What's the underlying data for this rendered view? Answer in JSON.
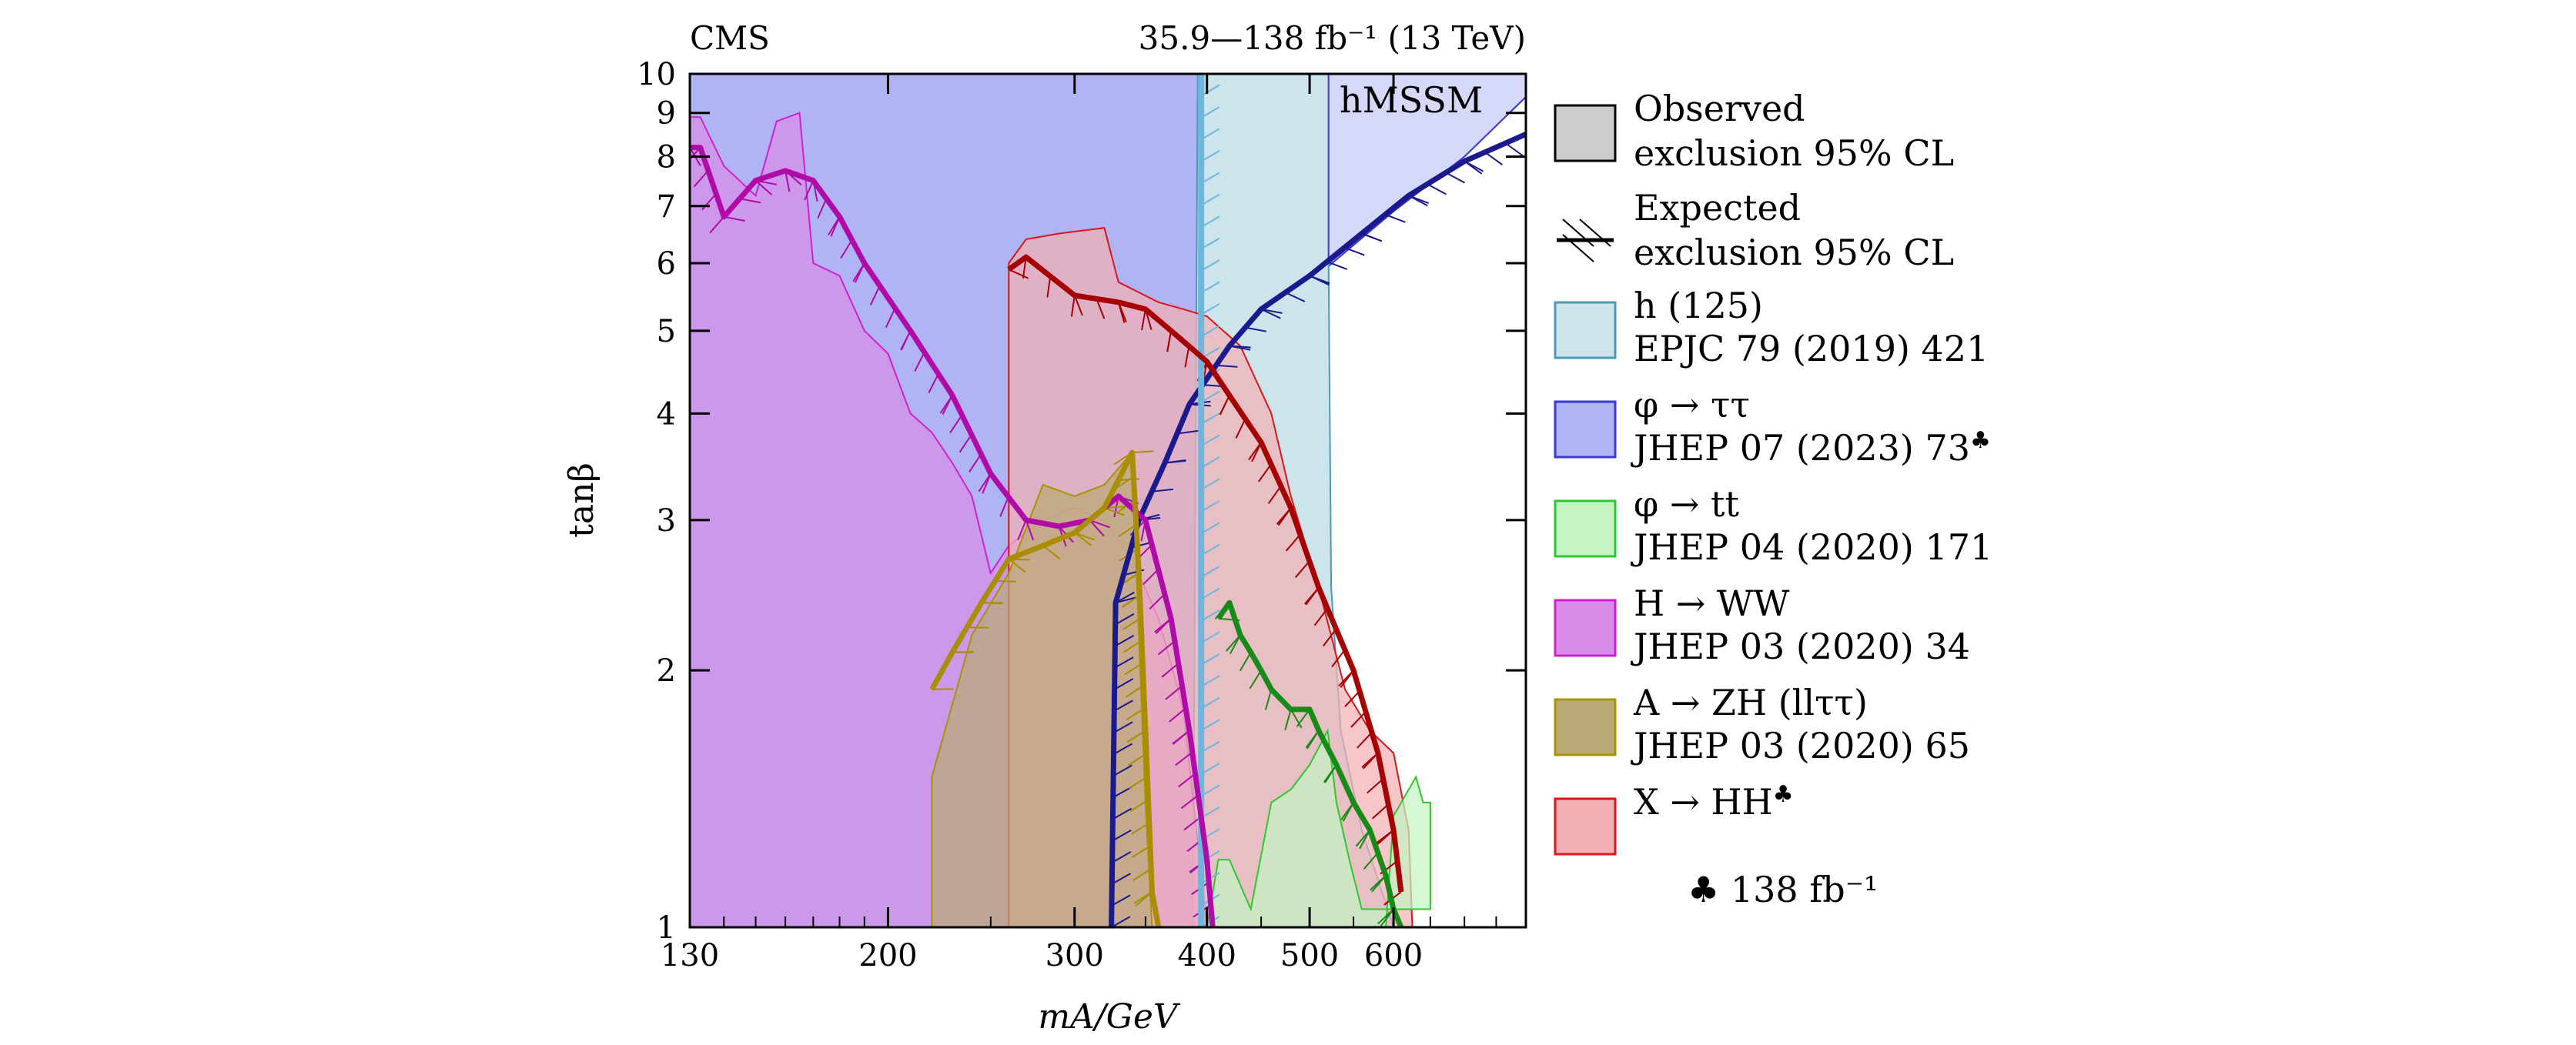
{
  "chart_data": {
    "type": "area",
    "header_left": "CMS",
    "header_right": "35.9—138 fb⁻¹ (13 TeV)",
    "xlabel": "mA/GeV",
    "ylabel": "tanβ",
    "x_scale": "log",
    "y_scale": "log",
    "xlim": [
      130,
      800
    ],
    "ylim": [
      1,
      10
    ],
    "x_ticks": [
      130,
      200,
      300,
      400,
      500,
      600
    ],
    "y_ticks": [
      1,
      2,
      3,
      4,
      5,
      6,
      7,
      8,
      9,
      10
    ],
    "grid": false,
    "legend_position": "right",
    "footnote": "♣ 138 fb⁻¹",
    "regions": [
      {
        "id": "tautau",
        "legend_line1": "φ → ττ",
        "legend_line2": "JHEP 07 (2023) 73",
        "legend_club": true,
        "fill": "#b0b4f4",
        "stroke": "#3a3ad0",
        "observed": [
          [
            130,
            10
          ],
          [
            800,
            10
          ],
          [
            800,
            9.4
          ],
          [
            700,
            8
          ],
          [
            600,
            6.9
          ],
          [
            500,
            5.7
          ],
          [
            450,
            5.0
          ],
          [
            420,
            4.0
          ],
          [
            400,
            3.0
          ],
          [
            395,
            2.0
          ],
          [
            393,
            1.0
          ],
          [
            130,
            1.0
          ]
        ],
        "expected": [
          [
            325,
            1.0
          ],
          [
            328,
            2.4
          ],
          [
            345,
            3.0
          ],
          [
            365,
            3.5
          ],
          [
            385,
            4.1
          ],
          [
            420,
            4.8
          ],
          [
            450,
            5.3
          ],
          [
            500,
            5.8
          ],
          [
            560,
            6.5
          ],
          [
            620,
            7.2
          ],
          [
            700,
            7.9
          ],
          [
            800,
            8.5
          ]
        ]
      },
      {
        "id": "h125",
        "legend_line1": "h (125)",
        "legend_line2": "EPJC 79 (2019) 421",
        "legend_club": false,
        "fill": "#cce4ec",
        "stroke": "#4b9ab8",
        "observed": [
          [
            388,
            1.0
          ],
          [
            392,
            10
          ],
          [
            521,
            10
          ],
          [
            521,
            6.0
          ],
          [
            524,
            2.5
          ],
          [
            535,
            1.7
          ],
          [
            560,
            1.3
          ],
          [
            600,
            1.0
          ]
        ],
        "expected": [
          [
            395,
            1.0
          ],
          [
            395,
            10
          ]
        ]
      },
      {
        "id": "hmssm_ext",
        "label": "hMSSM",
        "fill": "#d6d8fa",
        "stroke": "#3a3ad0",
        "observed": [
          [
            521,
            10
          ],
          [
            800,
            10
          ],
          [
            800,
            9.4
          ],
          [
            700,
            8
          ],
          [
            600,
            6.9
          ],
          [
            521,
            6.0
          ]
        ],
        "expected": []
      },
      {
        "id": "hww",
        "legend_line1": "H → WW",
        "legend_line2": "JHEP 03 (2020) 34",
        "legend_club": false,
        "fill": "#d88ee8",
        "stroke": "#d020d0",
        "observed": [
          [
            130,
            8.9
          ],
          [
            133,
            8.9
          ],
          [
            140,
            7.8
          ],
          [
            150,
            7.2
          ],
          [
            157,
            8.8
          ],
          [
            165,
            9.0
          ],
          [
            170,
            6.0
          ],
          [
            180,
            5.8
          ],
          [
            190,
            5.0
          ],
          [
            200,
            4.7
          ],
          [
            210,
            4.0
          ],
          [
            220,
            3.8
          ],
          [
            230,
            3.5
          ],
          [
            240,
            3.2
          ],
          [
            250,
            2.6
          ],
          [
            260,
            2.8
          ],
          [
            280,
            3.0
          ],
          [
            300,
            3.1
          ],
          [
            320,
            3.0
          ],
          [
            340,
            2.7
          ],
          [
            360,
            2.3
          ],
          [
            380,
            1.8
          ],
          [
            400,
            1.0
          ],
          [
            130,
            1.0
          ]
        ],
        "expected": [
          [
            130,
            8.2
          ],
          [
            133,
            8.2
          ],
          [
            140,
            6.8
          ],
          [
            150,
            7.5
          ],
          [
            160,
            7.7
          ],
          [
            170,
            7.5
          ],
          [
            180,
            6.8
          ],
          [
            190,
            6.0
          ],
          [
            210,
            5.0
          ],
          [
            230,
            4.2
          ],
          [
            250,
            3.4
          ],
          [
            270,
            3.0
          ],
          [
            290,
            2.95
          ],
          [
            310,
            3.0
          ],
          [
            330,
            3.2
          ],
          [
            350,
            3.0
          ],
          [
            370,
            2.3
          ],
          [
            385,
            1.7
          ],
          [
            400,
            1.2
          ],
          [
            405,
            1.0
          ]
        ]
      },
      {
        "id": "hh",
        "legend_line1": "X → HH",
        "legend_line2": "",
        "legend_club": true,
        "fill": "#f2b0b4",
        "stroke": "#d81818",
        "observed": [
          [
            260,
            1.0
          ],
          [
            260,
            6.0
          ],
          [
            270,
            6.4
          ],
          [
            290,
            6.5
          ],
          [
            320,
            6.6
          ],
          [
            330,
            5.7
          ],
          [
            360,
            5.4
          ],
          [
            380,
            5.3
          ],
          [
            400,
            5.2
          ],
          [
            430,
            4.8
          ],
          [
            460,
            4.0
          ],
          [
            480,
            3.2
          ],
          [
            510,
            2.5
          ],
          [
            540,
            1.9
          ],
          [
            570,
            1.7
          ],
          [
            600,
            1.6
          ],
          [
            620,
            1.3
          ],
          [
            625,
            1.0
          ]
        ],
        "expected": [
          [
            260,
            5.9
          ],
          [
            270,
            6.1
          ],
          [
            300,
            5.5
          ],
          [
            330,
            5.4
          ],
          [
            350,
            5.3
          ],
          [
            370,
            5.0
          ],
          [
            400,
            4.6
          ],
          [
            420,
            4.2
          ],
          [
            450,
            3.7
          ],
          [
            480,
            3.1
          ],
          [
            510,
            2.5
          ],
          [
            550,
            2.0
          ],
          [
            580,
            1.6
          ],
          [
            600,
            1.3
          ],
          [
            610,
            1.1
          ]
        ]
      },
      {
        "id": "zh",
        "legend_line1": "A → ZH (llττ)",
        "legend_line2": "JHEP 03 (2020) 65",
        "legend_club": false,
        "fill": "#b8aa74",
        "stroke": "#a89400",
        "observed": [
          [
            220,
            1.0
          ],
          [
            220,
            1.5
          ],
          [
            240,
            2.2
          ],
          [
            260,
            2.6
          ],
          [
            280,
            3.3
          ],
          [
            300,
            3.2
          ],
          [
            320,
            3.3
          ],
          [
            340,
            3.6
          ],
          [
            345,
            2.2
          ],
          [
            350,
            1.4
          ],
          [
            355,
            1.0
          ]
        ],
        "expected": [
          [
            220,
            1.9
          ],
          [
            230,
            2.1
          ],
          [
            245,
            2.4
          ],
          [
            260,
            2.7
          ],
          [
            280,
            2.8
          ],
          [
            300,
            2.9
          ],
          [
            320,
            3.1
          ],
          [
            340,
            3.6
          ],
          [
            345,
            2.6
          ],
          [
            350,
            1.7
          ],
          [
            355,
            1.1
          ],
          [
            360,
            1.0
          ]
        ]
      },
      {
        "id": "tt",
        "legend_line1": "φ → tt",
        "legend_line2": "JHEP 04 (2020) 171",
        "legend_club": false,
        "fill": "#c4f4c4",
        "stroke": "#2ec82e",
        "observed": [
          [
            400,
            1.0
          ],
          [
            410,
            1.2
          ],
          [
            420,
            1.2
          ],
          [
            440,
            1.05
          ],
          [
            460,
            1.4
          ],
          [
            480,
            1.45
          ],
          [
            500,
            1.55
          ],
          [
            520,
            1.7
          ],
          [
            530,
            1.4
          ],
          [
            545,
            1.2
          ],
          [
            560,
            1.05
          ],
          [
            600,
            1.05
          ],
          [
            640,
            1.05
          ],
          [
            650,
            1.05
          ],
          [
            650,
            1.4
          ],
          [
            640,
            1.4
          ],
          [
            630,
            1.5
          ],
          [
            620,
            1.45
          ],
          [
            600,
            1.35
          ],
          [
            590,
            1.0
          ]
        ],
        "expected": [
          [
            410,
            2.3
          ],
          [
            420,
            2.4
          ],
          [
            430,
            2.2
          ],
          [
            440,
            2.1
          ],
          [
            450,
            2.0
          ],
          [
            460,
            1.9
          ],
          [
            480,
            1.8
          ],
          [
            500,
            1.8
          ],
          [
            510,
            1.7
          ],
          [
            530,
            1.55
          ],
          [
            550,
            1.4
          ],
          [
            570,
            1.3
          ],
          [
            590,
            1.15
          ],
          [
            600,
            1.05
          ],
          [
            610,
            1.0
          ]
        ]
      }
    ]
  },
  "legend": {
    "observed_line1": "Observed",
    "observed_line2": "exclusion 95% CL",
    "expected_line1": "Expected",
    "expected_line2": "exclusion 95% CL"
  }
}
